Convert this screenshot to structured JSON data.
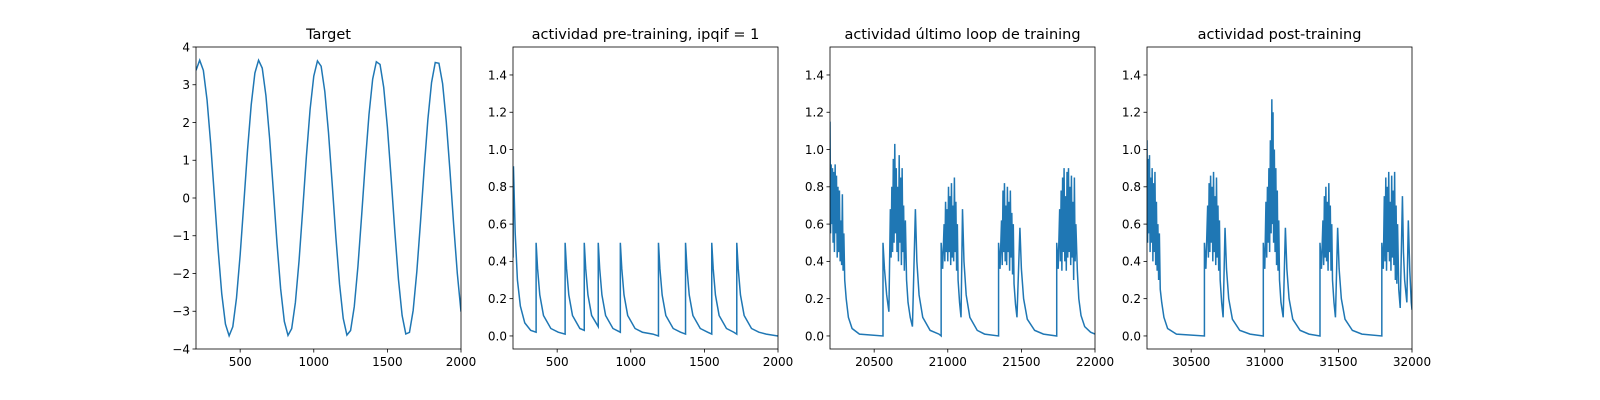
{
  "chart_data": [
    {
      "type": "line",
      "title": "Target",
      "color": "#1f77b4",
      "x": [
        200,
        225,
        250,
        275,
        300,
        325,
        350,
        375,
        400,
        425,
        450,
        475,
        500,
        525,
        550,
        575,
        600,
        625,
        650,
        675,
        700,
        725,
        750,
        775,
        800,
        825,
        850,
        875,
        900,
        925,
        950,
        975,
        1000,
        1025,
        1050,
        1075,
        1100,
        1125,
        1150,
        1175,
        1200,
        1225,
        1250,
        1275,
        1300,
        1325,
        1350,
        1375,
        1400,
        1425,
        1450,
        1475,
        1500,
        1525,
        1550,
        1575,
        1600,
        1625,
        1650,
        1675,
        1700,
        1725,
        1750,
        1775,
        1800,
        1825,
        1850,
        1875,
        1900,
        1925,
        1950,
        1975,
        2000
      ],
      "values": [
        3.38,
        3.65,
        3.38,
        2.6,
        1.43,
        0.04,
        -1.35,
        -2.54,
        -3.34,
        -3.65,
        -3.41,
        -2.65,
        -1.5,
        -0.13,
        1.27,
        2.47,
        3.31,
        3.65,
        3.44,
        2.71,
        1.58,
        0.21,
        -1.19,
        -2.41,
        -3.27,
        -3.64,
        -3.46,
        -2.77,
        -1.66,
        -0.3,
        1.11,
        2.35,
        3.23,
        3.63,
        3.49,
        2.82,
        1.73,
        0.38,
        -1.03,
        -2.28,
        -3.19,
        -3.63,
        -3.51,
        -2.88,
        -1.81,
        -0.47,
        0.94,
        2.21,
        3.15,
        3.61,
        3.54,
        2.93,
        1.88,
        0.55,
        -0.86,
        -2.15,
        -3.11,
        -3.6,
        -3.56,
        -2.98,
        -1.95,
        -0.63,
        0.78,
        2.08,
        3.06,
        3.59,
        3.57,
        3.03,
        2.02,
        0.72,
        -0.7,
        -2.0,
        -3.01
      ],
      "xlim": [
        200,
        2000
      ],
      "ylim": [
        -4,
        4
      ],
      "xticks": [
        500,
        1000,
        1500,
        2000
      ],
      "yticks": [
        {
          "value": -4,
          "label": "−4"
        },
        {
          "value": -3,
          "label": "−3"
        },
        {
          "value": -2,
          "label": "−2"
        },
        {
          "value": -1,
          "label": "−1"
        },
        0,
        1,
        2,
        3,
        4
      ]
    },
    {
      "type": "line",
      "title": "actividad pre-training, ipqif = 1",
      "color": "#1f77b4",
      "x": [
        200,
        203,
        215,
        230,
        250,
        280,
        320,
        357,
        357,
        367,
        382,
        407,
        457,
        507,
        554,
        554,
        564,
        579,
        604,
        654,
        684,
        684,
        694,
        709,
        734,
        779,
        779,
        789,
        804,
        829,
        879,
        929,
        929,
        939,
        954,
        979,
        1029,
        1079,
        1150,
        1188,
        1188,
        1198,
        1213,
        1238,
        1288,
        1338,
        1372,
        1372,
        1382,
        1397,
        1422,
        1472,
        1522,
        1550,
        1550,
        1560,
        1575,
        1600,
        1650,
        1700,
        1720,
        1720,
        1730,
        1745,
        1770,
        1820,
        1870,
        1920,
        2000
      ],
      "values": [
        0.42,
        0.91,
        0.55,
        0.3,
        0.16,
        0.07,
        0.03,
        0.02,
        0.5,
        0.36,
        0.22,
        0.11,
        0.04,
        0.02,
        0.01,
        0.5,
        0.36,
        0.22,
        0.11,
        0.04,
        0.03,
        0.5,
        0.36,
        0.22,
        0.11,
        0.05,
        0.5,
        0.36,
        0.22,
        0.11,
        0.04,
        0.02,
        0.5,
        0.36,
        0.22,
        0.11,
        0.04,
        0.02,
        0.01,
        0.0,
        0.5,
        0.36,
        0.22,
        0.11,
        0.04,
        0.02,
        0.01,
        0.5,
        0.36,
        0.22,
        0.11,
        0.04,
        0.02,
        0.01,
        0.5,
        0.36,
        0.22,
        0.11,
        0.04,
        0.02,
        0.01,
        0.5,
        0.36,
        0.22,
        0.11,
        0.04,
        0.02,
        0.01,
        0.0
      ],
      "xlim": [
        200,
        2000
      ],
      "ylim": [
        -0.07,
        1.55
      ],
      "xticks": [
        500,
        1000,
        1500,
        2000
      ],
      "yticks": [
        {
          "value": 0,
          "label": "0.0"
        },
        0.2,
        0.4,
        0.6,
        0.8,
        {
          "value": 1,
          "label": "1.0"
        },
        1.2,
        1.4
      ]
    },
    {
      "type": "line",
      "title": "actividad último loop de training",
      "color": "#1f77b4",
      "x": [
        20200,
        20204,
        20208,
        20212,
        20217,
        20221,
        20226,
        20230,
        20235,
        20240,
        20244,
        20249,
        20254,
        20259,
        20264,
        20269,
        20274,
        20279,
        20284,
        20289,
        20294,
        20300,
        20310,
        20325,
        20350,
        20400,
        20560,
        20560,
        20570,
        20585,
        20600,
        20610,
        20615,
        20620,
        20625,
        20630,
        20635,
        20640,
        20645,
        20650,
        20655,
        20660,
        20665,
        20670,
        20675,
        20680,
        20685,
        20690,
        20695,
        20700,
        20705,
        20712,
        20720,
        20730,
        20745,
        20760,
        20780,
        20790,
        20805,
        20830,
        20880,
        20940,
        20955,
        20955,
        20965,
        20975,
        20980,
        20985,
        20990,
        20995,
        21000,
        21005,
        21010,
        21015,
        21020,
        21025,
        21030,
        21035,
        21040,
        21045,
        21050,
        21055,
        21060,
        21065,
        21070,
        21080,
        21090,
        21100,
        21110,
        21125,
        21150,
        21200,
        21250,
        21345,
        21345,
        21355,
        21365,
        21370,
        21375,
        21380,
        21385,
        21390,
        21395,
        21400,
        21405,
        21410,
        21415,
        21420,
        21425,
        21430,
        21435,
        21440,
        21445,
        21450,
        21460,
        21470,
        21490,
        21500,
        21515,
        21540,
        21590,
        21650,
        21740,
        21740,
        21750,
        21760,
        21765,
        21770,
        21775,
        21780,
        21785,
        21790,
        21795,
        21800,
        21805,
        21810,
        21815,
        21820,
        21825,
        21830,
        21835,
        21840,
        21845,
        21850,
        21855,
        21860,
        21865,
        21870,
        21880,
        21890,
        21905,
        21930,
        21970,
        22000
      ],
      "values": [
        1.15,
        0.55,
        0.92,
        0.6,
        0.9,
        0.5,
        0.88,
        0.45,
        0.92,
        0.55,
        0.86,
        0.42,
        0.8,
        0.45,
        0.78,
        0.4,
        0.62,
        0.38,
        0.76,
        0.35,
        0.55,
        0.3,
        0.2,
        0.1,
        0.04,
        0.01,
        0.0,
        0.5,
        0.36,
        0.22,
        0.13,
        0.68,
        0.42,
        0.8,
        0.45,
        0.95,
        0.5,
        1.03,
        0.55,
        0.9,
        0.45,
        0.8,
        0.4,
        0.97,
        0.5,
        0.85,
        0.38,
        0.9,
        0.45,
        0.7,
        0.35,
        0.62,
        0.3,
        0.18,
        0.1,
        0.05,
        0.68,
        0.4,
        0.22,
        0.1,
        0.03,
        0.01,
        0.0,
        0.5,
        0.36,
        0.6,
        0.4,
        0.72,
        0.45,
        0.68,
        0.4,
        0.8,
        0.45,
        0.75,
        0.38,
        0.82,
        0.42,
        0.7,
        0.4,
        0.85,
        0.45,
        0.72,
        0.35,
        0.6,
        0.3,
        0.18,
        0.1,
        0.68,
        0.4,
        0.22,
        0.1,
        0.03,
        0.01,
        0.0,
        0.5,
        0.36,
        0.62,
        0.38,
        0.78,
        0.45,
        0.82,
        0.4,
        0.7,
        0.38,
        0.8,
        0.45,
        0.72,
        0.35,
        0.78,
        0.42,
        0.66,
        0.33,
        0.6,
        0.28,
        0.17,
        0.1,
        0.58,
        0.36,
        0.2,
        0.09,
        0.03,
        0.01,
        0.0,
        0.5,
        0.36,
        0.68,
        0.4,
        0.78,
        0.35,
        0.85,
        0.45,
        0.9,
        0.4,
        0.75,
        0.35,
        0.88,
        0.42,
        0.9,
        0.45,
        0.8,
        0.38,
        0.86,
        0.42,
        0.72,
        0.3,
        0.85,
        0.4,
        0.6,
        0.35,
        0.2,
        0.11,
        0.05,
        0.02,
        0.01
      ],
      "xlim": [
        20200,
        22000
      ],
      "ylim": [
        -0.07,
        1.55
      ],
      "xticks": [
        20500,
        21000,
        21500,
        22000
      ],
      "yticks": [
        {
          "value": 0,
          "label": "0.0"
        },
        0.2,
        0.4,
        0.6,
        0.8,
        {
          "value": 1,
          "label": "1.0"
        },
        1.2,
        1.4
      ]
    },
    {
      "type": "line",
      "title": "actividad post-training",
      "color": "#1f77b4",
      "x": [
        30200,
        30204,
        30208,
        30212,
        30217,
        30221,
        30226,
        30230,
        30235,
        30240,
        30244,
        30249,
        30254,
        30259,
        30264,
        30269,
        30274,
        30279,
        30284,
        30290,
        30300,
        30315,
        30340,
        30400,
        30590,
        30590,
        30600,
        30612,
        30617,
        30622,
        30627,
        30632,
        30637,
        30642,
        30647,
        30652,
        30657,
        30662,
        30667,
        30672,
        30677,
        30682,
        30687,
        30692,
        30697,
        30707,
        30717,
        30730,
        30740,
        30755,
        30780,
        30830,
        30900,
        30990,
        30990,
        31000,
        31008,
        31013,
        31018,
        31023,
        31028,
        31033,
        31038,
        31043,
        31048,
        31052,
        31056,
        31060,
        31065,
        31070,
        31075,
        31080,
        31085,
        31090,
        31095,
        31100,
        31110,
        31125,
        31140,
        31150,
        31165,
        31190,
        31240,
        31300,
        31375,
        31375,
        31385,
        31395,
        31400,
        31405,
        31410,
        31415,
        31420,
        31425,
        31430,
        31435,
        31440,
        31445,
        31450,
        31455,
        31460,
        31470,
        31480,
        31495,
        31505,
        31520,
        31545,
        31595,
        31660,
        31795,
        31795,
        31805,
        31812,
        31817,
        31822,
        31827,
        31832,
        31837,
        31842,
        31847,
        31852,
        31857,
        31862,
        31867,
        31872,
        31877,
        31882,
        31887,
        31892,
        31897,
        31902,
        31910,
        31920,
        31935,
        31942,
        31950,
        31965,
        31975,
        31985,
        31995,
        32000
      ],
      "values": [
        1.05,
        0.5,
        0.95,
        0.55,
        0.97,
        0.45,
        0.85,
        0.5,
        0.9,
        0.4,
        0.82,
        0.45,
        0.88,
        0.38,
        0.72,
        0.35,
        0.6,
        0.3,
        0.55,
        0.25,
        0.18,
        0.1,
        0.04,
        0.01,
        0.0,
        0.5,
        0.36,
        0.7,
        0.42,
        0.82,
        0.45,
        0.86,
        0.5,
        0.8,
        0.4,
        0.88,
        0.45,
        0.75,
        0.38,
        0.85,
        0.42,
        0.7,
        0.35,
        0.62,
        0.3,
        0.18,
        0.1,
        0.58,
        0.36,
        0.2,
        0.09,
        0.03,
        0.01,
        0.0,
        0.5,
        0.36,
        0.72,
        0.42,
        0.8,
        0.5,
        0.9,
        0.45,
        1.05,
        0.55,
        1.27,
        0.6,
        1.2,
        0.5,
        1.0,
        0.45,
        0.9,
        0.38,
        0.78,
        0.35,
        0.62,
        0.3,
        0.18,
        0.1,
        0.58,
        0.36,
        0.2,
        0.09,
        0.03,
        0.01,
        0.0,
        0.5,
        0.36,
        0.62,
        0.38,
        0.75,
        0.42,
        0.8,
        0.4,
        0.72,
        0.35,
        0.82,
        0.45,
        0.7,
        0.35,
        0.6,
        0.3,
        0.18,
        0.1,
        0.58,
        0.36,
        0.2,
        0.09,
        0.03,
        0.01,
        0.0,
        0.5,
        0.36,
        0.75,
        0.4,
        0.85,
        0.35,
        0.8,
        0.45,
        0.88,
        0.4,
        0.72,
        0.35,
        0.86,
        0.42,
        0.78,
        0.38,
        0.88,
        0.3,
        0.7,
        0.28,
        0.6,
        0.25,
        0.15,
        0.75,
        0.45,
        0.3,
        0.18,
        0.62,
        0.35,
        0.18,
        0.14
      ],
      "xlim": [
        30200,
        32000
      ],
      "ylim": [
        -0.07,
        1.55
      ],
      "xticks": [
        30500,
        31000,
        31500,
        32000
      ],
      "yticks": [
        {
          "value": 0,
          "label": "0.0"
        },
        0.2,
        0.4,
        0.6,
        0.8,
        {
          "value": 1,
          "label": "1.0"
        },
        1.2,
        1.4
      ]
    }
  ]
}
